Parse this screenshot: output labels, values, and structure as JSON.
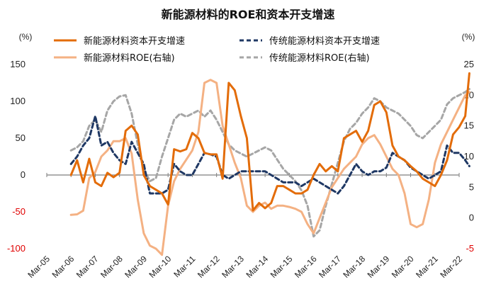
{
  "chart_data": {
    "type": "line",
    "title": "新能源材料的ROE和资本开支增速",
    "left_axis": {
      "unit": "(%)",
      "range": [
        -100,
        150
      ],
      "ticks": [
        -100,
        -50,
        0,
        50,
        100,
        150
      ]
    },
    "right_axis": {
      "unit": "(%)",
      "range": [
        -5,
        25
      ],
      "ticks": [
        -5,
        0,
        5,
        10,
        15,
        20,
        25
      ]
    },
    "x_ticks": [
      "Mar-05",
      "Mar-06",
      "Mar-07",
      "Mar-08",
      "Mar-09",
      "Mar-10",
      "Mar-11",
      "Mar-12",
      "Mar-13",
      "Mar-14",
      "Mar-15",
      "Mar-16",
      "Mar-17",
      "Mar-18",
      "Mar-19",
      "Mar-20",
      "Mar-21",
      "Mar-22"
    ],
    "x_range": [
      2005.0,
      2022.0
    ],
    "legend_position": "top",
    "series": [
      {
        "name": "新能源材料资本开支增速",
        "axis": "left",
        "color": "#E36C09",
        "style": "solid",
        "points": [
          [
            2006.0,
            0
          ],
          [
            2006.25,
            20
          ],
          [
            2006.5,
            -10
          ],
          [
            2006.75,
            22
          ],
          [
            2007.0,
            -10
          ],
          [
            2007.25,
            -15
          ],
          [
            2007.5,
            3
          ],
          [
            2007.75,
            -3
          ],
          [
            2008.0,
            3
          ],
          [
            2008.25,
            60
          ],
          [
            2008.5,
            67
          ],
          [
            2008.75,
            55
          ],
          [
            2009.0,
            0
          ],
          [
            2009.25,
            -15
          ],
          [
            2009.5,
            -20
          ],
          [
            2009.75,
            -25
          ],
          [
            2010.0,
            -40
          ],
          [
            2010.25,
            35
          ],
          [
            2010.5,
            32
          ],
          [
            2010.75,
            35
          ],
          [
            2011.0,
            57
          ],
          [
            2011.25,
            50
          ],
          [
            2011.5,
            30
          ],
          [
            2011.75,
            28
          ],
          [
            2012.0,
            28
          ],
          [
            2012.25,
            -5
          ],
          [
            2012.5,
            125
          ],
          [
            2012.75,
            115
          ],
          [
            2013.0,
            80
          ],
          [
            2013.25,
            50
          ],
          [
            2013.5,
            -48
          ],
          [
            2013.75,
            -38
          ],
          [
            2014.0,
            -45
          ],
          [
            2014.25,
            -38
          ],
          [
            2014.5,
            -15
          ],
          [
            2014.75,
            -15
          ],
          [
            2015.0,
            -20
          ],
          [
            2015.25,
            -25
          ],
          [
            2015.5,
            -25
          ],
          [
            2015.75,
            -20
          ],
          [
            2016.0,
            0
          ],
          [
            2016.25,
            15
          ],
          [
            2016.5,
            5
          ],
          [
            2016.75,
            12
          ],
          [
            2017.0,
            5
          ],
          [
            2017.25,
            50
          ],
          [
            2017.5,
            55
          ],
          [
            2017.75,
            60
          ],
          [
            2018.0,
            45
          ],
          [
            2018.25,
            60
          ],
          [
            2018.5,
            95
          ],
          [
            2018.75,
            100
          ],
          [
            2019.0,
            85
          ],
          [
            2019.25,
            40
          ],
          [
            2019.5,
            25
          ],
          [
            2019.75,
            20
          ],
          [
            2020.0,
            12
          ],
          [
            2020.25,
            5
          ],
          [
            2020.5,
            -5
          ],
          [
            2020.75,
            -10
          ],
          [
            2021.0,
            -15
          ],
          [
            2021.25,
            0
          ],
          [
            2021.5,
            20
          ],
          [
            2021.75,
            55
          ],
          [
            2022.0,
            65
          ],
          [
            2022.25,
            80
          ],
          [
            2022.42,
            138
          ]
        ]
      },
      {
        "name": "传统能源材料资本开支增速",
        "axis": "left",
        "color": "#1F3864",
        "style": "dashed",
        "points": [
          [
            2006.0,
            15
          ],
          [
            2006.25,
            25
          ],
          [
            2006.5,
            40
          ],
          [
            2006.75,
            50
          ],
          [
            2007.0,
            80
          ],
          [
            2007.25,
            40
          ],
          [
            2007.5,
            45
          ],
          [
            2007.75,
            30
          ],
          [
            2008.0,
            20
          ],
          [
            2008.25,
            15
          ],
          [
            2008.5,
            45
          ],
          [
            2008.75,
            30
          ],
          [
            2009.0,
            15
          ],
          [
            2009.25,
            -25
          ],
          [
            2009.5,
            -25
          ],
          [
            2009.75,
            -25
          ],
          [
            2010.0,
            -20
          ],
          [
            2010.25,
            15
          ],
          [
            2010.5,
            5
          ],
          [
            2010.75,
            0
          ],
          [
            2011.0,
            0
          ],
          [
            2011.25,
            15
          ],
          [
            2011.5,
            30
          ],
          [
            2011.75,
            28
          ],
          [
            2012.0,
            25
          ],
          [
            2012.25,
            0
          ],
          [
            2012.5,
            -5
          ],
          [
            2012.75,
            0
          ],
          [
            2013.0,
            5
          ],
          [
            2013.25,
            5
          ],
          [
            2013.5,
            5
          ],
          [
            2013.75,
            5
          ],
          [
            2014.0,
            5
          ],
          [
            2014.25,
            0
          ],
          [
            2014.5,
            -5
          ],
          [
            2014.75,
            -10
          ],
          [
            2015.0,
            -10
          ],
          [
            2015.25,
            -10
          ],
          [
            2015.5,
            -15
          ],
          [
            2015.75,
            -10
          ],
          [
            2016.0,
            -5
          ],
          [
            2016.25,
            -10
          ],
          [
            2016.5,
            -15
          ],
          [
            2016.75,
            -20
          ],
          [
            2017.0,
            -25
          ],
          [
            2017.25,
            -15
          ],
          [
            2017.5,
            0
          ],
          [
            2017.75,
            15
          ],
          [
            2018.0,
            5
          ],
          [
            2018.25,
            0
          ],
          [
            2018.5,
            5
          ],
          [
            2018.75,
            5
          ],
          [
            2019.0,
            10
          ],
          [
            2019.25,
            30
          ],
          [
            2019.5,
            25
          ],
          [
            2019.75,
            20
          ],
          [
            2020.0,
            10
          ],
          [
            2020.25,
            5
          ],
          [
            2020.5,
            0
          ],
          [
            2020.75,
            -5
          ],
          [
            2021.0,
            0
          ],
          [
            2021.25,
            5
          ],
          [
            2021.5,
            40
          ],
          [
            2021.75,
            30
          ],
          [
            2022.0,
            30
          ],
          [
            2022.25,
            20
          ],
          [
            2022.42,
            12
          ]
        ]
      },
      {
        "name": "新能源材料ROE(右轴)",
        "axis": "right",
        "color": "#F4B183",
        "style": "solid",
        "points": [
          [
            2006.0,
            0.5
          ],
          [
            2006.25,
            0.6
          ],
          [
            2006.5,
            1.2
          ],
          [
            2006.75,
            6.5
          ],
          [
            2007.0,
            7.5
          ],
          [
            2007.25,
            10.0
          ],
          [
            2007.5,
            11.0
          ],
          [
            2007.75,
            12.5
          ],
          [
            2008.0,
            12.5
          ],
          [
            2008.25,
            13.0
          ],
          [
            2008.5,
            10.5
          ],
          [
            2008.75,
            3.0
          ],
          [
            2009.0,
            -2.5
          ],
          [
            2009.25,
            -4.5
          ],
          [
            2009.5,
            -5.0
          ],
          [
            2009.75,
            -6.0
          ],
          [
            2010.0,
            2.0
          ],
          [
            2010.25,
            6.0
          ],
          [
            2010.5,
            8.0
          ],
          [
            2010.75,
            9.5
          ],
          [
            2011.0,
            11.0
          ],
          [
            2011.25,
            14.0
          ],
          [
            2011.5,
            22.0
          ],
          [
            2011.75,
            22.5
          ],
          [
            2012.0,
            22.0
          ],
          [
            2012.25,
            15.0
          ],
          [
            2012.5,
            12.0
          ],
          [
            2012.75,
            9.0
          ],
          [
            2013.0,
            6.5
          ],
          [
            2013.25,
            2.0
          ],
          [
            2013.5,
            1.0
          ],
          [
            2013.75,
            2.0
          ],
          [
            2014.0,
            2.5
          ],
          [
            2014.25,
            1.5
          ],
          [
            2014.5,
            2.0
          ],
          [
            2014.75,
            2.0
          ],
          [
            2015.0,
            1.8
          ],
          [
            2015.25,
            1.5
          ],
          [
            2015.5,
            1.0
          ],
          [
            2015.75,
            -1.0
          ],
          [
            2016.0,
            -2.5
          ],
          [
            2016.25,
            0.0
          ],
          [
            2016.5,
            2.5
          ],
          [
            2016.75,
            5.0
          ],
          [
            2017.0,
            6.5
          ],
          [
            2017.25,
            8.0
          ],
          [
            2017.5,
            9.0
          ],
          [
            2017.75,
            10.0
          ],
          [
            2018.0,
            12.0
          ],
          [
            2018.25,
            13.0
          ],
          [
            2018.5,
            13.5
          ],
          [
            2018.75,
            12.0
          ],
          [
            2019.0,
            10.0
          ],
          [
            2019.25,
            8.0
          ],
          [
            2019.5,
            7.0
          ],
          [
            2019.75,
            4.0
          ],
          [
            2020.0,
            -1.0
          ],
          [
            2020.25,
            -1.5
          ],
          [
            2020.5,
            -1.0
          ],
          [
            2020.75,
            3.0
          ],
          [
            2021.0,
            9.0
          ],
          [
            2021.25,
            12.0
          ],
          [
            2021.5,
            14.0
          ],
          [
            2021.75,
            16.0
          ],
          [
            2022.0,
            18.0
          ],
          [
            2022.25,
            20.0
          ],
          [
            2022.42,
            20.5
          ]
        ]
      },
      {
        "name": "传统能源材料ROE(右轴)",
        "axis": "right",
        "color": "#A6A6A6",
        "style": "dashed",
        "points": [
          [
            2006.0,
            11.0
          ],
          [
            2006.25,
            11.5
          ],
          [
            2006.5,
            12.5
          ],
          [
            2006.75,
            15.0
          ],
          [
            2007.0,
            16.0
          ],
          [
            2007.25,
            14.0
          ],
          [
            2007.5,
            17.5
          ],
          [
            2007.75,
            19.0
          ],
          [
            2008.0,
            19.8
          ],
          [
            2008.25,
            20.0
          ],
          [
            2008.5,
            17.0
          ],
          [
            2008.75,
            12.0
          ],
          [
            2009.0,
            8.0
          ],
          [
            2009.25,
            6.0
          ],
          [
            2009.5,
            6.5
          ],
          [
            2009.75,
            10.0
          ],
          [
            2010.0,
            13.0
          ],
          [
            2010.25,
            16.0
          ],
          [
            2010.5,
            17.0
          ],
          [
            2010.75,
            16.5
          ],
          [
            2011.0,
            17.0
          ],
          [
            2011.25,
            17.5
          ],
          [
            2011.5,
            16.5
          ],
          [
            2011.75,
            17.5
          ],
          [
            2012.0,
            16.0
          ],
          [
            2012.25,
            14.0
          ],
          [
            2012.5,
            12.0
          ],
          [
            2012.75,
            11.0
          ],
          [
            2013.0,
            10.5
          ],
          [
            2013.25,
            10.0
          ],
          [
            2013.5,
            10.5
          ],
          [
            2013.75,
            11.0
          ],
          [
            2014.0,
            11.5
          ],
          [
            2014.25,
            11.0
          ],
          [
            2014.5,
            9.5
          ],
          [
            2014.75,
            8.0
          ],
          [
            2015.0,
            7.0
          ],
          [
            2015.25,
            6.0
          ],
          [
            2015.5,
            4.5
          ],
          [
            2015.75,
            2.0
          ],
          [
            2016.0,
            -3.0
          ],
          [
            2016.25,
            -2.0
          ],
          [
            2016.5,
            2.0
          ],
          [
            2016.75,
            5.5
          ],
          [
            2017.0,
            9.0
          ],
          [
            2017.25,
            12.5
          ],
          [
            2017.5,
            14.5
          ],
          [
            2017.75,
            15.5
          ],
          [
            2018.0,
            17.0
          ],
          [
            2018.25,
            18.0
          ],
          [
            2018.5,
            19.5
          ],
          [
            2018.75,
            19.0
          ],
          [
            2019.0,
            18.0
          ],
          [
            2019.25,
            17.5
          ],
          [
            2019.5,
            17.0
          ],
          [
            2019.75,
            16.0
          ],
          [
            2020.0,
            15.0
          ],
          [
            2020.25,
            13.5
          ],
          [
            2020.5,
            13.0
          ],
          [
            2020.75,
            14.0
          ],
          [
            2021.0,
            15.0
          ],
          [
            2021.25,
            16.0
          ],
          [
            2021.5,
            18.5
          ],
          [
            2021.75,
            19.5
          ],
          [
            2022.0,
            20.0
          ],
          [
            2022.25,
            20.5
          ],
          [
            2022.42,
            21.0
          ]
        ]
      }
    ]
  }
}
